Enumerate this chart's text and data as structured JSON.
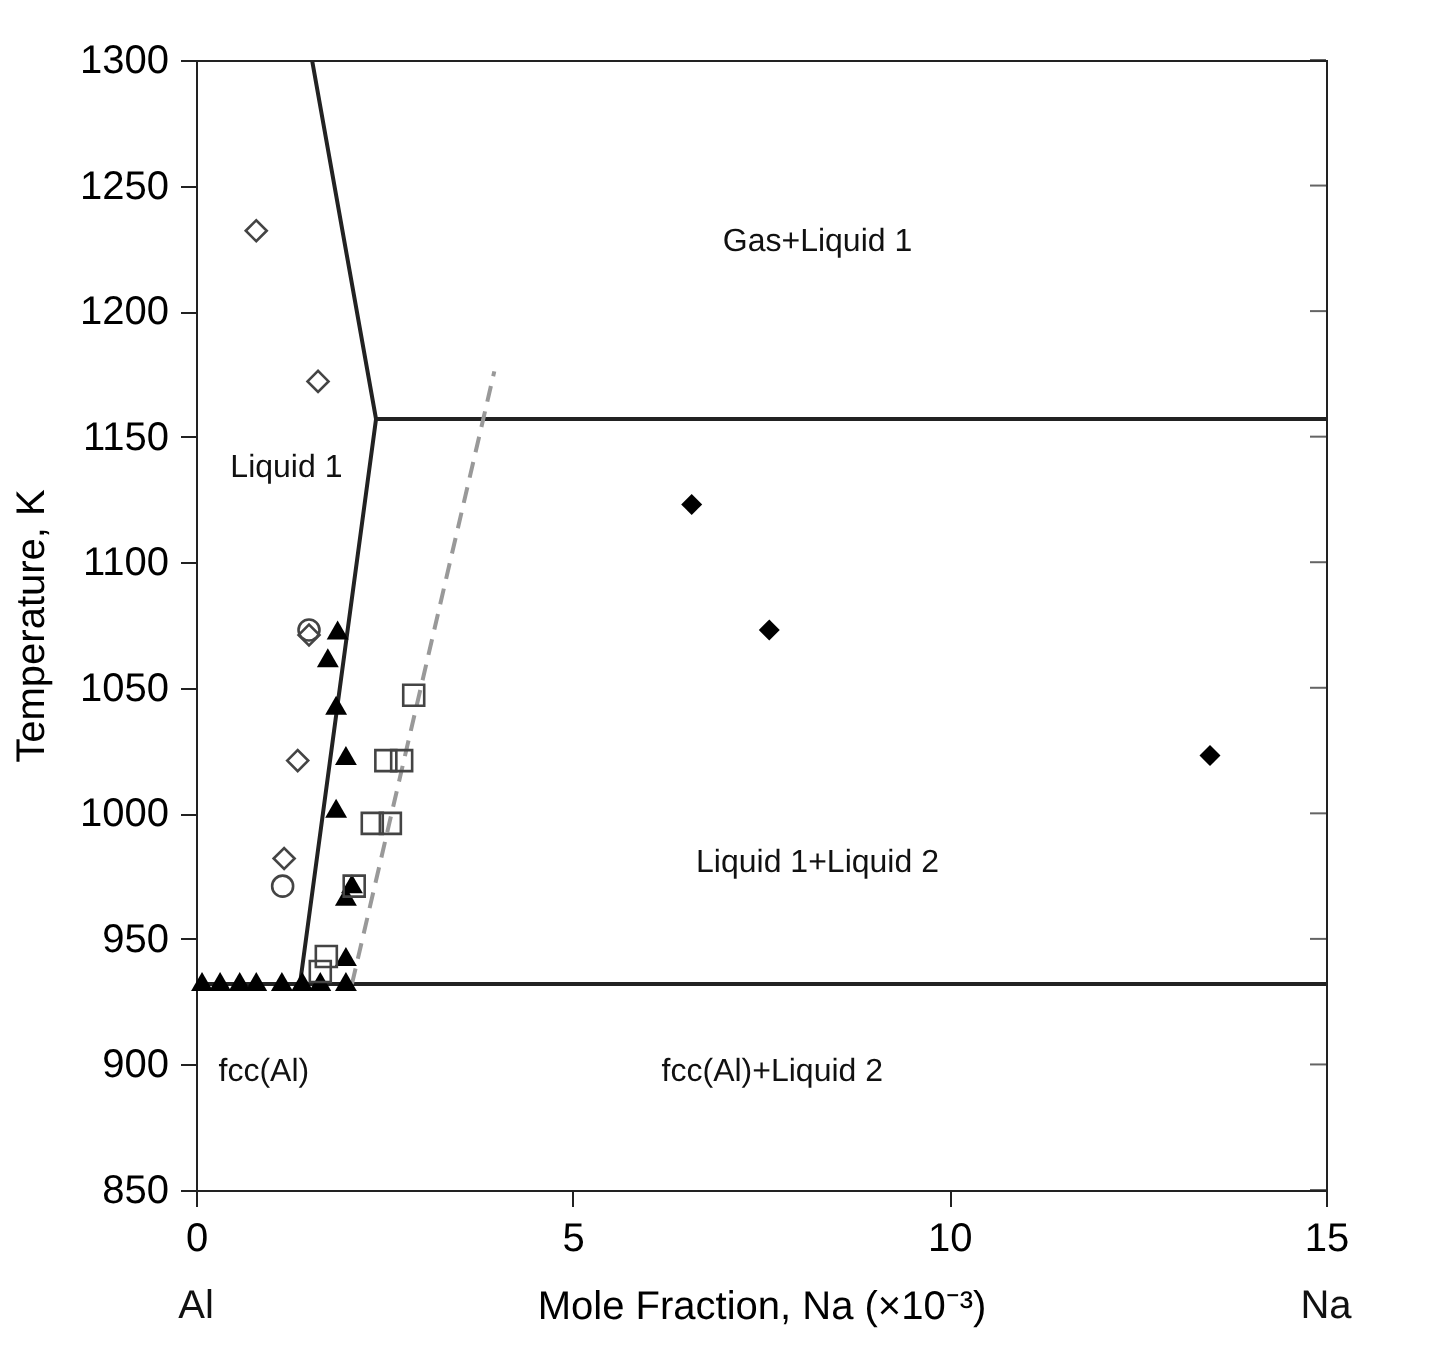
{
  "chart_data": {
    "type": "scatter",
    "xlabel": "Mole Fraction, Na  (×10⁻³)",
    "ylabel": "Temperature, K",
    "xlim": [
      0,
      15
    ],
    "xticks": [
      0,
      5,
      10,
      15
    ],
    "ylim": [
      850,
      1300
    ],
    "yticks": [
      850,
      900,
      950,
      1000,
      1050,
      1100,
      1150,
      1200,
      1250,
      1300
    ],
    "grid": false,
    "series": [
      {
        "type": "line",
        "color": "#222222",
        "line_style": "solid",
        "x": [
          1.54,
          2.39,
          1.38
        ],
        "values": [
          1300,
          1157,
          932
        ]
      },
      {
        "type": "line",
        "color": "#222222",
        "line_style": "solid",
        "x": [
          2.39,
          15
        ],
        "values": [
          1157,
          1157
        ]
      },
      {
        "type": "line",
        "color": "#222222",
        "line_style": "solid",
        "x": [
          0,
          15
        ],
        "values": [
          932,
          932
        ]
      },
      {
        "type": "line",
        "color": "#999999",
        "line_style": "dashed",
        "x": [
          2.07,
          3.96
        ],
        "values": [
          932,
          1176
        ]
      },
      {
        "marker": "diamond",
        "color": "#444444",
        "x": [
          0.8,
          1.62,
          1.5,
          1.35,
          1.17
        ],
        "values": [
          1232,
          1172,
          1071,
          1021,
          982
        ]
      },
      {
        "marker": "circle",
        "color": "#444444",
        "x": [
          1.5,
          1.15
        ],
        "values": [
          1073,
          971
        ]
      },
      {
        "marker": "triangle",
        "color": "#000000",
        "x": [
          1.88,
          1.75,
          1.86,
          1.99,
          1.86,
          2.07,
          1.99,
          1.99,
          0.08,
          0.32,
          0.58,
          0.8,
          1.14,
          1.41,
          1.65,
          1.99
        ],
        "values": [
          1073,
          1062,
          1043,
          1023,
          1002,
          972,
          967,
          943,
          933,
          933,
          933,
          933,
          933,
          933,
          933,
          933
        ]
      },
      {
        "marker": "square",
        "color": "#444444",
        "x": [
          2.89,
          2.52,
          2.73,
          2.34,
          2.58,
          2.1,
          1.73,
          1.65
        ],
        "values": [
          1047,
          1021,
          1021,
          996,
          996,
          971,
          943,
          937
        ]
      },
      {
        "marker": "diamond",
        "color": "#000000",
        "x": [
          6.58,
          7.61,
          13.46
        ],
        "values": [
          1123,
          1073,
          1023
        ]
      }
    ],
    "annotations": [
      "Gas+Liquid 1",
      "Liquid 1",
      "Liquid 1+Liquid 2",
      "fcc(Al)+Liquid 2",
      "fcc(Al)",
      "Al",
      "Na"
    ]
  }
}
